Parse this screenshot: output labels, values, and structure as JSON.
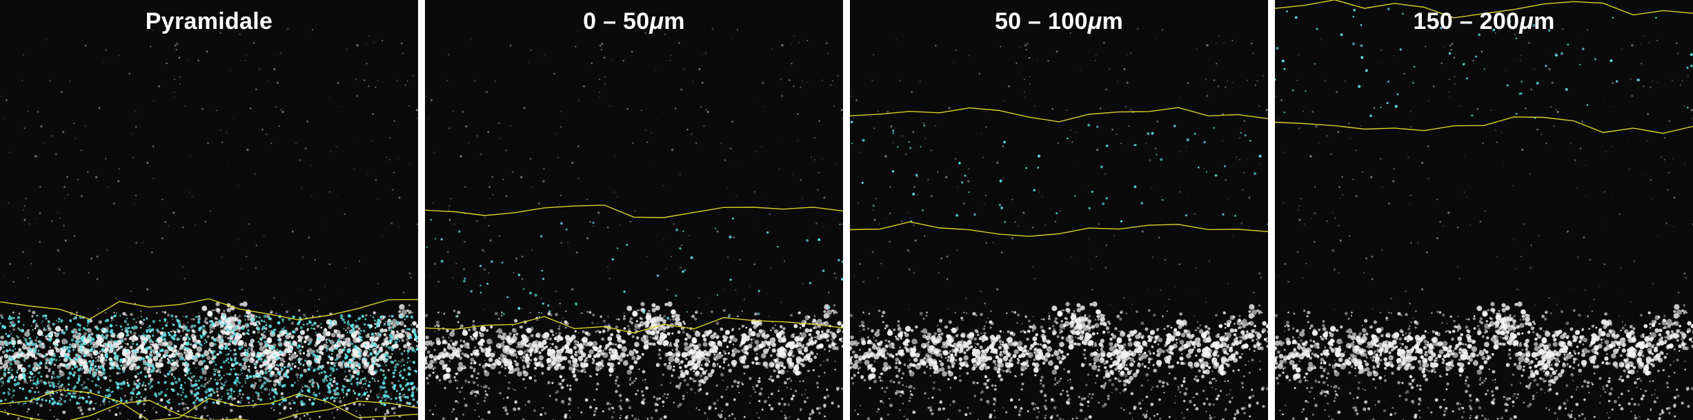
{
  "figure": {
    "panels": [
      {
        "id": "pyramidale",
        "title": "Pyramidale",
        "title_parts": [
          "Pyramidale",
          "",
          ""
        ],
        "layer_band": [
          0.735,
          0.98
        ],
        "show_cyan_dense": true
      },
      {
        "id": "d0_50",
        "title": "0 – 50μm",
        "title_parts": [
          "0 – 50",
          "μ",
          "m"
        ],
        "layer_band": [
          0.5,
          0.775
        ],
        "show_cyan_dense": false
      },
      {
        "id": "d50_100",
        "title": "50 – 100μm",
        "title_parts": [
          "50 – 100",
          "μ",
          "m"
        ],
        "layer_band": [
          0.27,
          0.545
        ],
        "show_cyan_dense": false
      },
      {
        "id": "d150_200",
        "title": "150 – 200μm",
        "title_parts": [
          "150 – 200",
          "μ",
          "m"
        ],
        "layer_band": [
          0.0,
          0.3
        ],
        "show_cyan_dense": false
      }
    ],
    "colors": {
      "background": "#0a0a0a",
      "boundary": "#d8d32a",
      "highlight": "#5fe3e8",
      "cell_signal": "#f2f2f2",
      "separator": "#ffffff"
    }
  }
}
